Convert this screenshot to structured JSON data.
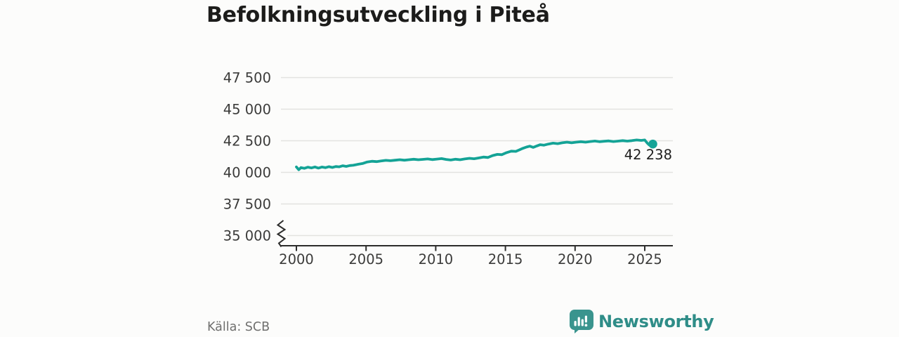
{
  "header": {
    "title": "Befolkningsutveckling i Piteå"
  },
  "chart_data": {
    "type": "line",
    "title": "Befolkningsutveckling i Piteå",
    "xlabel": "",
    "ylabel": "",
    "grid": "horizontal",
    "legend_position": "none",
    "axis_break_bottom": true,
    "xlim": [
      1999,
      2027
    ],
    "ylim": [
      35000,
      47500
    ],
    "x_ticks": [
      2000,
      2005,
      2010,
      2015,
      2020,
      2025
    ],
    "y_ticks": [
      35000,
      37500,
      40000,
      42500,
      45000,
      47500
    ],
    "end_value": 42238,
    "end_label": "42 238",
    "points": [
      [
        2000.0,
        40430
      ],
      [
        2000.17,
        40210
      ],
      [
        2000.33,
        40380
      ],
      [
        2000.58,
        40320
      ],
      [
        2000.83,
        40410
      ],
      [
        2001.08,
        40350
      ],
      [
        2001.33,
        40430
      ],
      [
        2001.58,
        40340
      ],
      [
        2001.83,
        40420
      ],
      [
        2002.08,
        40370
      ],
      [
        2002.33,
        40450
      ],
      [
        2002.58,
        40390
      ],
      [
        2002.83,
        40460
      ],
      [
        2003.08,
        40440
      ],
      [
        2003.33,
        40520
      ],
      [
        2003.58,
        40470
      ],
      [
        2003.83,
        40540
      ],
      [
        2004.08,
        40560
      ],
      [
        2004.42,
        40640
      ],
      [
        2004.75,
        40700
      ],
      [
        2005.08,
        40820
      ],
      [
        2005.42,
        40880
      ],
      [
        2005.75,
        40850
      ],
      [
        2006.08,
        40900
      ],
      [
        2006.42,
        40950
      ],
      [
        2006.75,
        40920
      ],
      [
        2007.08,
        40960
      ],
      [
        2007.42,
        41000
      ],
      [
        2007.75,
        40960
      ],
      [
        2008.08,
        41000
      ],
      [
        2008.42,
        41040
      ],
      [
        2008.75,
        41000
      ],
      [
        2009.08,
        41030
      ],
      [
        2009.42,
        41060
      ],
      [
        2009.75,
        41010
      ],
      [
        2010.08,
        41050
      ],
      [
        2010.42,
        41090
      ],
      [
        2010.75,
        41020
      ],
      [
        2011.08,
        40980
      ],
      [
        2011.42,
        41040
      ],
      [
        2011.75,
        41000
      ],
      [
        2012.08,
        41060
      ],
      [
        2012.42,
        41110
      ],
      [
        2012.75,
        41080
      ],
      [
        2013.08,
        41140
      ],
      [
        2013.42,
        41210
      ],
      [
        2013.75,
        41180
      ],
      [
        2014.08,
        41330
      ],
      [
        2014.42,
        41420
      ],
      [
        2014.75,
        41400
      ],
      [
        2015.08,
        41560
      ],
      [
        2015.42,
        41680
      ],
      [
        2015.75,
        41660
      ],
      [
        2016.0,
        41780
      ],
      [
        2016.25,
        41900
      ],
      [
        2016.5,
        42000
      ],
      [
        2016.75,
        42070
      ],
      [
        2017.0,
        41980
      ],
      [
        2017.25,
        42090
      ],
      [
        2017.5,
        42190
      ],
      [
        2017.75,
        42150
      ],
      [
        2018.08,
        42240
      ],
      [
        2018.42,
        42310
      ],
      [
        2018.75,
        42270
      ],
      [
        2019.08,
        42340
      ],
      [
        2019.42,
        42390
      ],
      [
        2019.75,
        42340
      ],
      [
        2020.08,
        42390
      ],
      [
        2020.42,
        42430
      ],
      [
        2020.75,
        42390
      ],
      [
        2021.08,
        42440
      ],
      [
        2021.42,
        42480
      ],
      [
        2021.75,
        42430
      ],
      [
        2022.08,
        42460
      ],
      [
        2022.42,
        42490
      ],
      [
        2022.75,
        42440
      ],
      [
        2023.08,
        42470
      ],
      [
        2023.42,
        42510
      ],
      [
        2023.75,
        42470
      ],
      [
        2024.08,
        42510
      ],
      [
        2024.42,
        42560
      ],
      [
        2024.75,
        42530
      ],
      [
        2025.0,
        42560
      ],
      [
        2025.17,
        42330
      ],
      [
        2025.33,
        42160
      ],
      [
        2025.58,
        42238
      ]
    ]
  },
  "footer": {
    "source": "Källa: SCB"
  },
  "logo": {
    "text": "Newsworthy"
  },
  "colors": {
    "line": "#14a396",
    "grid": "#e2e2e0",
    "axis": "#2c2c2b",
    "tick_label": "#3b3b3a",
    "end_label": "#1e1e1d",
    "background": "#fcfcfb",
    "logo_teal": "#3a948e",
    "logo_text": "#2f8d88"
  }
}
